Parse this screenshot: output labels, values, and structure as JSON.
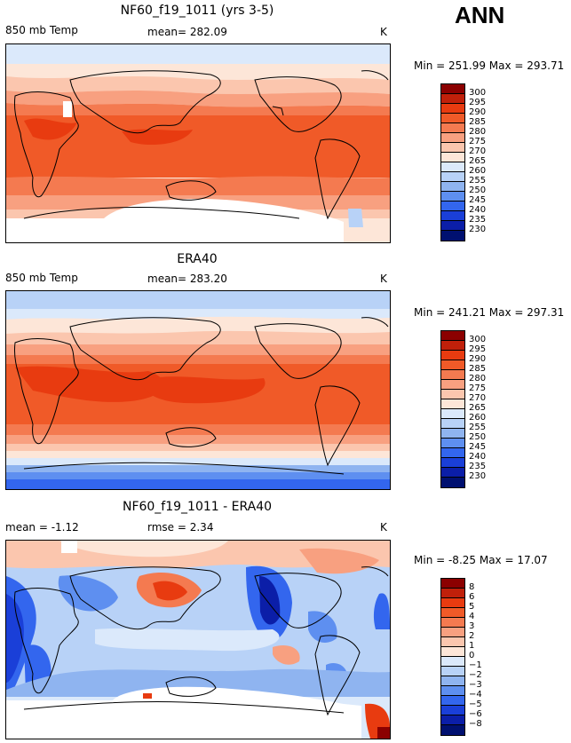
{
  "season_label": "ANN",
  "panels": [
    {
      "title": "NF60_f19_1011 (yrs 3-5)",
      "left_label": "850 mb Temp",
      "center_label": "mean= 282.09",
      "units": "K",
      "minmax": "Min = 251.99 Max = 293.71"
    },
    {
      "title": "ERA40",
      "left_label": "850 mb Temp",
      "center_label": "mean= 283.20",
      "units": "K",
      "minmax": "Min = 241.21 Max = 297.31"
    },
    {
      "title": "NF60_f19_1011 - ERA40",
      "left_label": "mean =  -1.12",
      "center_label": "rmse =   2.34",
      "units": "K",
      "minmax": "Min =  -8.25 Max =  17.07"
    }
  ],
  "colorbar_abs": {
    "labels": [
      "300",
      "295",
      "290",
      "285",
      "280",
      "275",
      "270",
      "265",
      "260",
      "255",
      "250",
      "245",
      "240",
      "235",
      "230"
    ],
    "colors": [
      "#8b0000",
      "#c0200a",
      "#e83b10",
      "#f05a28",
      "#f47a50",
      "#f8a080",
      "#fbc6ae",
      "#fde6d8",
      "#dbe9fb",
      "#b8d2f7",
      "#8fb4f0",
      "#5e8ff0",
      "#3366ee",
      "#1a3fd8",
      "#0b1ea8",
      "#001070"
    ]
  },
  "colorbar_diff": {
    "labels": [
      "8",
      "6",
      "5",
      "4",
      "3",
      "2",
      "1",
      "0",
      "−1",
      "−2",
      "−3",
      "−4",
      "−5",
      "−6",
      "−8"
    ],
    "colors": [
      "#8b0000",
      "#c0200a",
      "#e83b10",
      "#f05a28",
      "#f47a50",
      "#f8a080",
      "#fbc6ae",
      "#fde6d8",
      "#dbe9fb",
      "#b8d2f7",
      "#8fb4f0",
      "#5e8ff0",
      "#3366ee",
      "#1a3fd8",
      "#0b1ea8",
      "#001070"
    ]
  }
}
